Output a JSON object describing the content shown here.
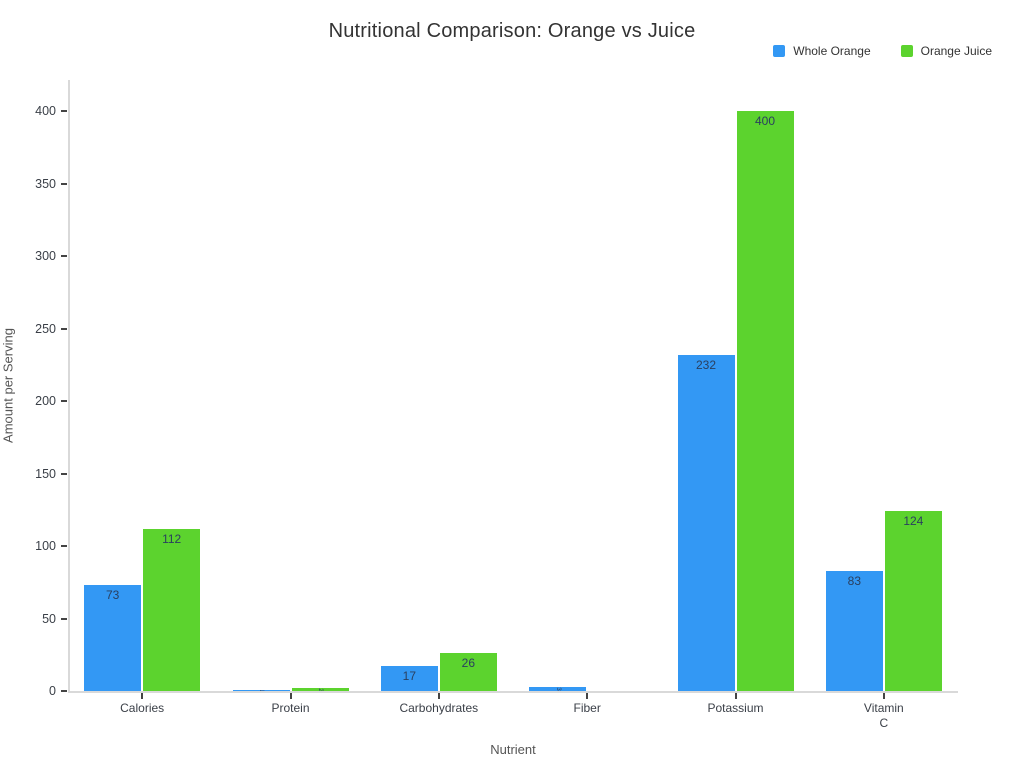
{
  "title": "Nutritional Comparison: Orange vs Juice",
  "chart_data": {
    "type": "bar",
    "title": "Nutritional Comparison: Orange vs Juice",
    "xlabel": "Nutrient",
    "ylabel": "Amount per Serving",
    "categories": [
      "Calories",
      "Protein",
      "Carbohydrates",
      "Fiber",
      "Potassium",
      "Vitamin C"
    ],
    "category_display_lines": [
      [
        "Calories"
      ],
      [
        "Protein"
      ],
      [
        "Carbohydrates"
      ],
      [
        "Fiber"
      ],
      [
        "Potassium"
      ],
      [
        "Vitamin",
        "C"
      ]
    ],
    "series": [
      {
        "name": "Whole Orange",
        "color": "#3398f4",
        "values": [
          73,
          1,
          17,
          3,
          232,
          83
        ]
      },
      {
        "name": "Orange Juice",
        "color": "#5cd32e",
        "values": [
          112,
          2,
          26,
          0,
          400,
          124
        ]
      }
    ],
    "ylim": [
      0,
      400
    ],
    "yticks": [
      0,
      50,
      100,
      150,
      200,
      250,
      300,
      350,
      400
    ],
    "grid": false,
    "legend_position": "top-right",
    "bar_value_labels": true,
    "background": "#ffffff"
  },
  "colors": {
    "axis_line": "#d9d9d9",
    "tick_mark": "#444444",
    "tick_label": "#3a3f47",
    "axis_title": "#555555",
    "title": "#333333",
    "bar_label": "#2a3f5f"
  }
}
